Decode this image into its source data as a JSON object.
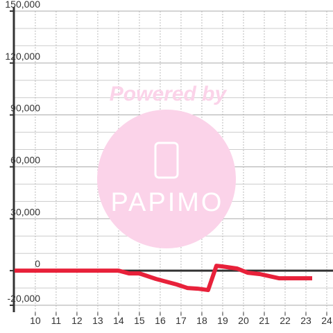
{
  "chart_data": {
    "type": "line",
    "x": [
      9,
      10,
      11,
      12,
      13,
      14,
      14.5,
      15,
      15.3,
      15.8,
      16.3,
      16.8,
      17.3,
      17.8,
      18.3,
      18.7,
      19,
      19.7,
      20.2,
      20.8,
      21.7,
      23.3
    ],
    "series": [
      {
        "color": "#e8213a",
        "values": [
          0,
          0,
          0,
          0,
          0,
          0,
          -1600,
          -1600,
          -2800,
          -4800,
          -6400,
          -8000,
          -10000,
          -10400,
          -11200,
          2800,
          2400,
          1200,
          -1200,
          -2000,
          -4400,
          -4400
        ]
      }
    ],
    "xlim": [
      8.97,
      24.3
    ],
    "xticks": [
      10,
      11,
      12,
      13,
      14,
      15,
      16,
      17,
      18,
      19,
      20,
      21,
      22,
      23,
      24
    ],
    "ylim": [
      -24000,
      150000
    ],
    "yticks": [
      {
        "value": -20000,
        "label": "-20,000"
      },
      0,
      {
        "value": 30000,
        "label": "30,000"
      },
      {
        "value": 60000,
        "label": "60,000"
      },
      {
        "value": 90000,
        "label": "90,000"
      },
      {
        "value": 120000,
        "label": "120,000"
      },
      {
        "value": 150000,
        "label": "150,000"
      }
    ],
    "yminorticks": [
      -10000,
      10000,
      20000,
      40000,
      50000,
      70000,
      80000,
      100000,
      110000,
      130000,
      140000
    ],
    "grid": true,
    "watermark": {
      "text": "Powered by",
      "logo": "PAPIMO"
    }
  }
}
